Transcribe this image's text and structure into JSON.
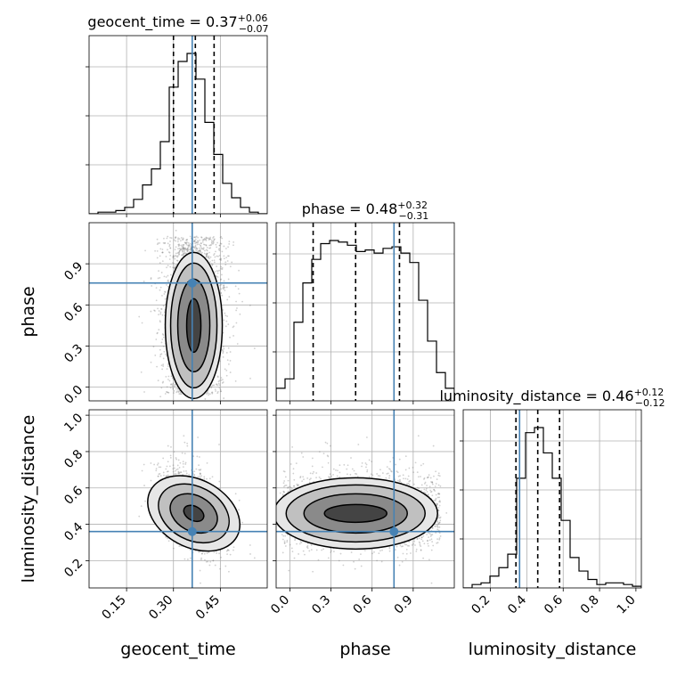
{
  "chart_data": {
    "type": "corner",
    "parameters": [
      {
        "key": "geocent_time",
        "label": "geocent_time",
        "range": [
          0.03,
          0.6
        ],
        "ticks": [
          0.15,
          0.3,
          0.45
        ],
        "tick_labels": [
          "0.15",
          "0.30",
          "0.45"
        ],
        "truth": 0.36,
        "title": {
          "name": "geocent_time",
          "median": "0.37",
          "plus": "+0.06",
          "minus": "−0.07"
        },
        "quantiles": [
          0.3,
          0.37,
          0.43
        ],
        "hist_bins": {
          "start": 0.03,
          "width": 0.0285,
          "counts": [
            0,
            1,
            1,
            2,
            4,
            9,
            18,
            28,
            45,
            79,
            95,
            100,
            84,
            57,
            37,
            19,
            10,
            4,
            1,
            0
          ]
        }
      },
      {
        "key": "phase",
        "label": "phase",
        "range": [
          -0.1,
          1.2
        ],
        "ticks": [
          0.0,
          0.3,
          0.6,
          0.9
        ],
        "tick_labels": [
          "0.0",
          "0.3",
          "0.6",
          "0.9"
        ],
        "truth": 0.76,
        "title": {
          "name": "phase",
          "median": "0.48",
          "plus": "+0.32",
          "minus": "−0.31"
        },
        "quantiles": [
          0.17,
          0.48,
          0.8
        ],
        "hist_bins": {
          "start": -0.1,
          "width": 0.065,
          "counts": [
            8,
            14,
            50,
            75,
            90,
            100,
            102,
            101,
            99,
            95,
            96,
            94,
            97,
            98,
            94,
            88,
            64,
            38,
            18,
            8
          ]
        }
      },
      {
        "key": "luminosity_distance",
        "label": "luminosity_distance",
        "range": [
          0.05,
          1.03
        ],
        "ticks": [
          0.2,
          0.4,
          0.6,
          0.8,
          1.0
        ],
        "tick_labels": [
          "0.2",
          "0.4",
          "0.6",
          "0.8",
          "1.0"
        ],
        "truth": 0.36,
        "title": {
          "name": "luminosity_distance",
          "median": "0.46",
          "plus": "+0.12",
          "minus": "−0.12"
        },
        "quantiles": [
          0.34,
          0.46,
          0.58
        ],
        "hist_bins": {
          "start": 0.05,
          "width": 0.049,
          "counts": [
            0,
            2,
            3,
            7,
            12,
            20,
            65,
            92,
            95,
            80,
            65,
            40,
            18,
            10,
            5,
            2,
            3,
            3,
            2,
            1
          ]
        }
      }
    ],
    "truth_color": "#4682b4",
    "quantile_style": "dashed",
    "grid": true,
    "scatter_seed": 7
  }
}
